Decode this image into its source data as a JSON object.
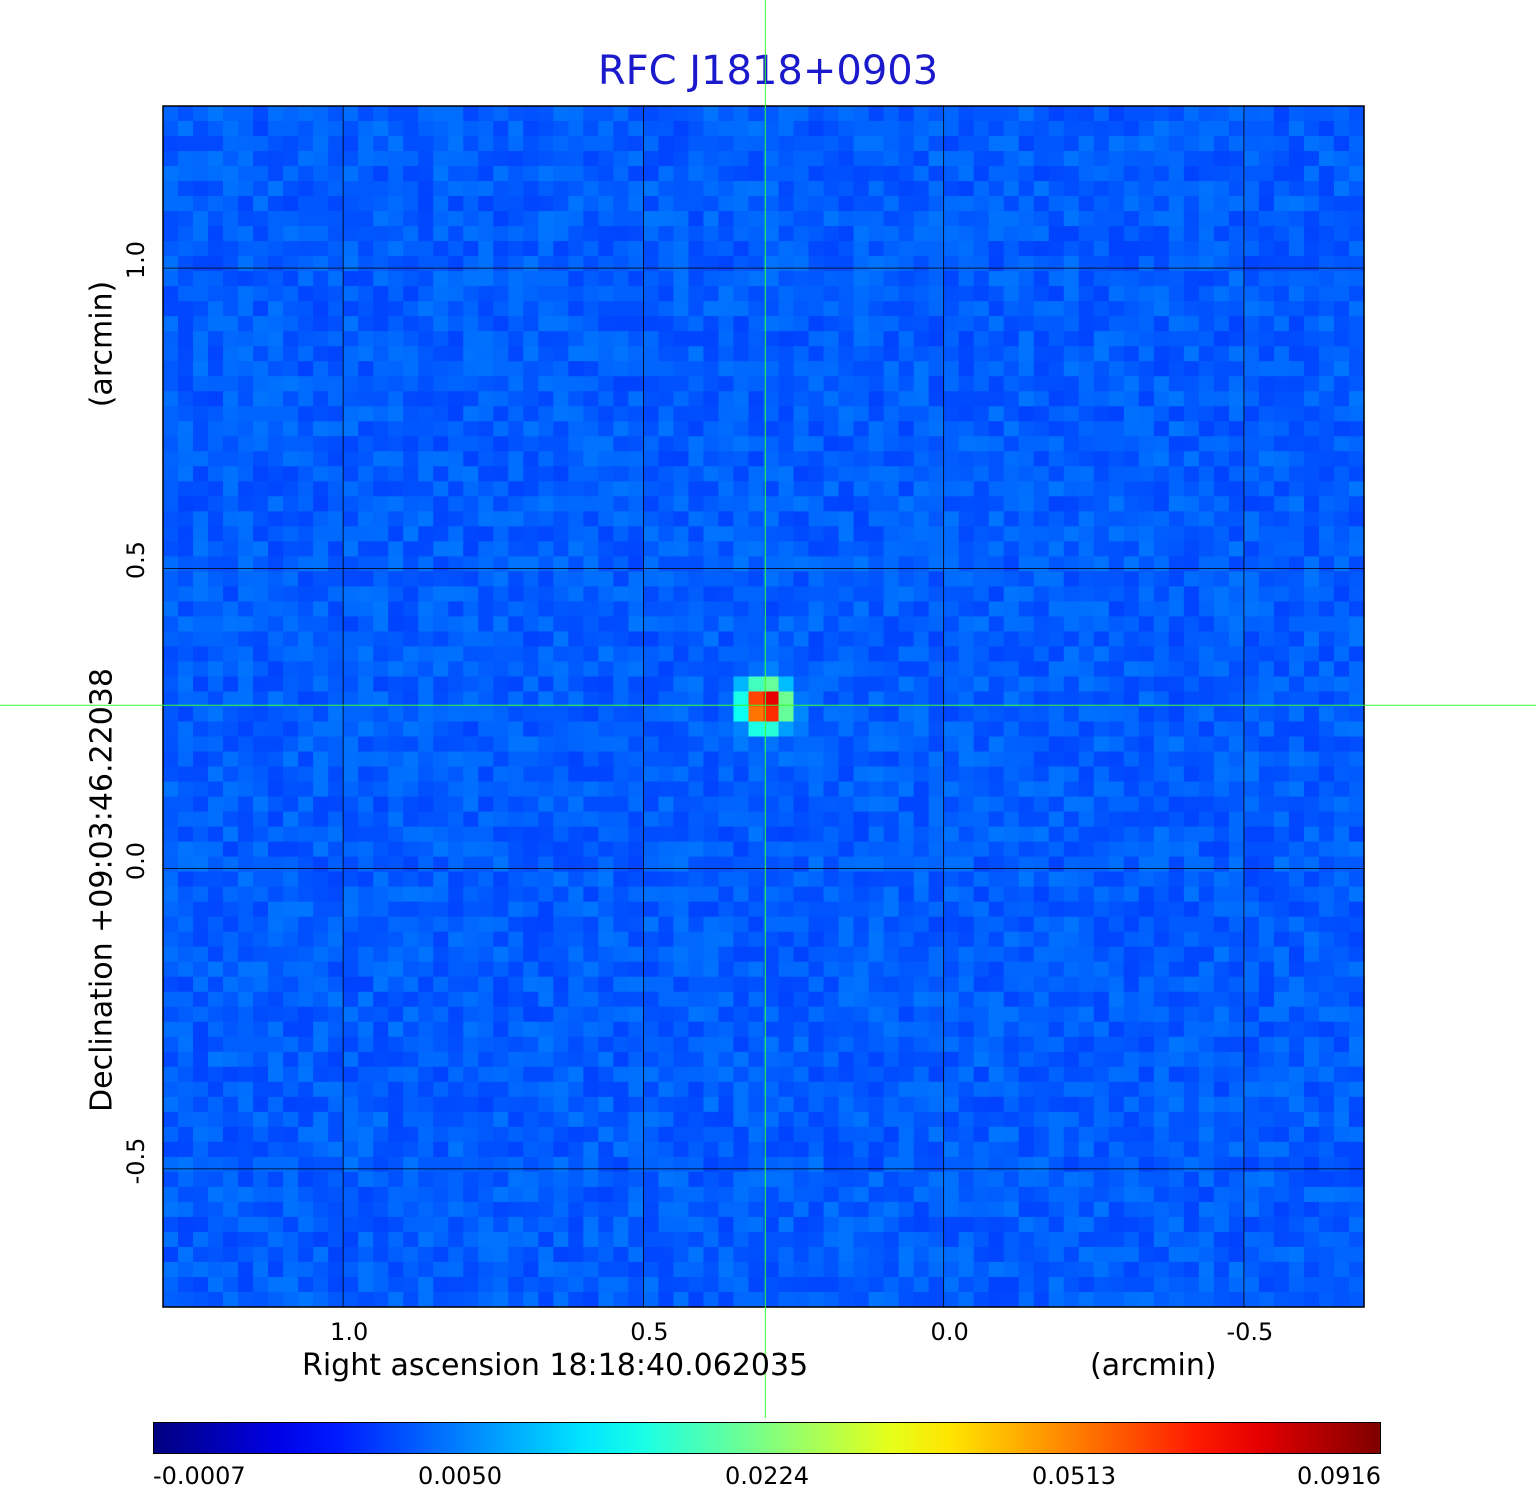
{
  "title": "RFC J1818+0903",
  "chart_data": {
    "type": "heatmap",
    "title": "RFC J1818+0903",
    "xlabel": "Right ascension  18:18:40.062035",
    "xunit": "(arcmin)",
    "ylabel": "Declination  +09:03:46.22038",
    "yunit": "(arcmin)",
    "xlim": [
      1.3,
      -0.7
    ],
    "ylim": [
      -0.73,
      1.27
    ],
    "x_ticks": [
      "1.0",
      "0.5",
      "0.0",
      "-0.5"
    ],
    "x_tick_values": [
      1.0,
      0.5,
      0.0,
      -0.5
    ],
    "y_ticks": [
      "1.0",
      "0.5",
      "0.0",
      "-0.5"
    ],
    "y_tick_values": [
      1.0,
      0.5,
      0.0,
      -0.5
    ],
    "grid": true,
    "source": {
      "x": 0.297,
      "y": 0.272,
      "peak": 0.0916
    },
    "crosshair": {
      "x": 0.297,
      "y": 0.272,
      "color": "#33ff33"
    },
    "colorbar": {
      "labels": [
        "-0.0007",
        "0.0050",
        "0.0224",
        "0.0513",
        "0.0916"
      ],
      "values": [
        -0.0007,
        0.005,
        0.0224,
        0.0513,
        0.0916
      ],
      "colormap": "jet"
    }
  }
}
